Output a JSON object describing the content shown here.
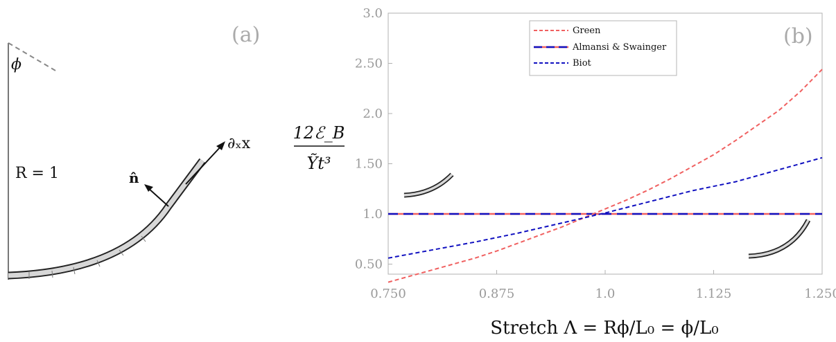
{
  "panel_a": {
    "label": "(a)",
    "angle_label": "ϕ",
    "radius_label": "R = 1",
    "normal_label": "n̂",
    "tangent_label": "∂ₓx"
  },
  "chart_data": {
    "type": "line",
    "panel_label": "(b)",
    "xlabel": "Stretch Λ = Rϕ/L₀ = ϕ/L₀",
    "ylabel_numerator": "12ℰ_B",
    "ylabel_denominator": "Ỹt³",
    "xlim": [
      0.75,
      1.25
    ],
    "ylim": [
      0.4,
      3.0
    ],
    "x_ticks": [
      "0.750",
      "0.875",
      "1.0",
      "1.125",
      "1.250"
    ],
    "y_ticks": [
      "0.50",
      "1.0",
      "1.50",
      "2.0",
      "2.50",
      "3.0"
    ],
    "legend_position": "top-center",
    "series": [
      {
        "name": "Green",
        "color": "#f06060",
        "style": "dashed",
        "x": [
          0.75,
          0.775,
          0.8,
          0.825,
          0.85,
          0.875,
          0.9,
          0.925,
          0.95,
          0.975,
          1.0,
          1.025,
          1.05,
          1.075,
          1.1,
          1.125,
          1.15,
          1.175,
          1.2,
          1.225,
          1.25
        ],
        "values": [
          0.32,
          0.38,
          0.44,
          0.5,
          0.56,
          0.63,
          0.71,
          0.79,
          0.87,
          0.96,
          1.05,
          1.14,
          1.24,
          1.35,
          1.47,
          1.59,
          1.73,
          1.88,
          2.03,
          2.22,
          2.44
        ]
      },
      {
        "name": "Almansi & Swainger",
        "color": "#1010c0",
        "color2": "#f06060",
        "style": "long-dashed",
        "x": [
          0.75,
          1.25
        ],
        "values": [
          1.0,
          1.0
        ]
      },
      {
        "name": "Biot",
        "color": "#1010c0",
        "style": "dashed",
        "x": [
          0.75,
          0.8,
          0.85,
          0.9,
          0.95,
          1.0,
          1.05,
          1.1,
          1.15,
          1.2,
          1.25
        ],
        "values": [
          0.56,
          0.64,
          0.72,
          0.81,
          0.91,
          1.01,
          1.12,
          1.23,
          1.32,
          1.44,
          1.56
        ]
      }
    ]
  }
}
